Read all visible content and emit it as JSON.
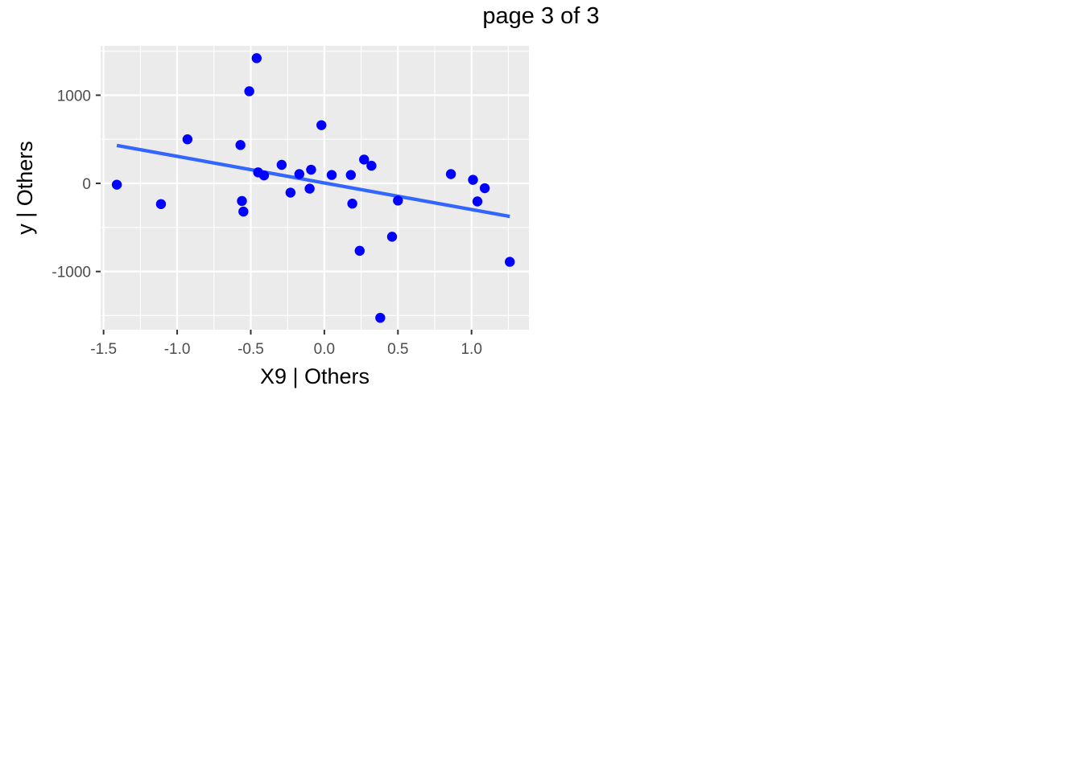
{
  "page": {
    "title": "page 3 of 3"
  },
  "colors": {
    "panel_bg": "#EBEBEB",
    "grid": "#FFFFFF",
    "point": "#0000FF",
    "fit_line": "#3366FF",
    "tick": "#333333",
    "tick_label": "#4D4D4D"
  },
  "chart_data": {
    "type": "scatter",
    "title": "",
    "xlabel": "X9  | Others",
    "ylabel": "y  | Others",
    "xlim": [
      -1.52,
      1.39
    ],
    "ylim": [
      -1660,
      1560
    ],
    "x_ticks": [
      -1.5,
      -1.0,
      -0.5,
      0.0,
      0.5,
      1.0
    ],
    "x_tick_labels": [
      "-1.5",
      "-1.0",
      "-0.5",
      "0.0",
      "0.5",
      "1.0"
    ],
    "y_ticks": [
      -1000,
      0,
      1000
    ],
    "y_tick_labels": [
      "-1000",
      "0",
      "1000"
    ],
    "grid": true,
    "points": [
      {
        "x": -1.41,
        "y": -15
      },
      {
        "x": -1.11,
        "y": -235
      },
      {
        "x": -0.93,
        "y": 500
      },
      {
        "x": -0.57,
        "y": 435
      },
      {
        "x": -0.56,
        "y": -200
      },
      {
        "x": -0.55,
        "y": -320
      },
      {
        "x": -0.51,
        "y": 1045
      },
      {
        "x": -0.46,
        "y": 1420
      },
      {
        "x": -0.45,
        "y": 125
      },
      {
        "x": -0.41,
        "y": 90
      },
      {
        "x": -0.29,
        "y": 210
      },
      {
        "x": -0.23,
        "y": -105
      },
      {
        "x": -0.17,
        "y": 105
      },
      {
        "x": -0.1,
        "y": -60
      },
      {
        "x": -0.09,
        "y": 155
      },
      {
        "x": -0.02,
        "y": 660
      },
      {
        "x": 0.05,
        "y": 95
      },
      {
        "x": 0.18,
        "y": 95
      },
      {
        "x": 0.19,
        "y": -230
      },
      {
        "x": 0.24,
        "y": -765
      },
      {
        "x": 0.27,
        "y": 270
      },
      {
        "x": 0.32,
        "y": 200
      },
      {
        "x": 0.38,
        "y": -1525
      },
      {
        "x": 0.46,
        "y": -605
      },
      {
        "x": 0.5,
        "y": -195
      },
      {
        "x": 0.86,
        "y": 105
      },
      {
        "x": 1.01,
        "y": 40
      },
      {
        "x": 1.04,
        "y": -205
      },
      {
        "x": 1.09,
        "y": -55
      },
      {
        "x": 1.26,
        "y": -890
      }
    ],
    "fit_line": {
      "x": [
        -1.41,
        1.26
      ],
      "y": [
        430,
        -375
      ]
    }
  }
}
